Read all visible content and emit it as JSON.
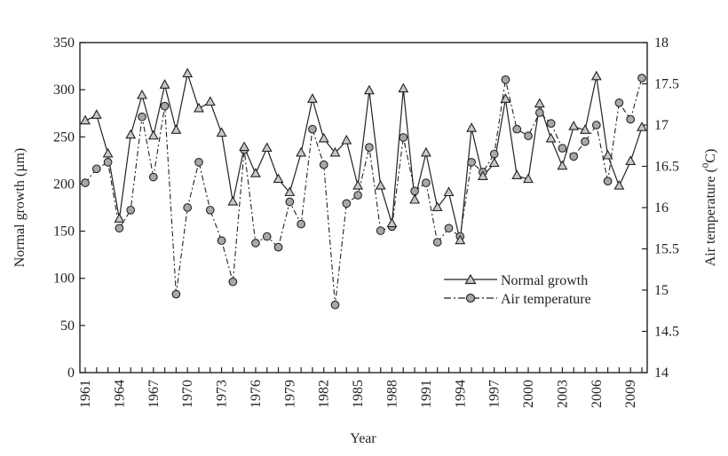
{
  "chart_data": {
    "type": "line",
    "title": "",
    "xlabel": "Year",
    "ylabel_left": "Normal growth (µm)",
    "ylabel_right_prefix": "Air temperature (",
    "ylabel_right_sup": "0",
    "ylabel_right_suffix": "C)",
    "x_tick_labels": [
      "1961",
      "1964",
      "1967",
      "1970",
      "1973",
      "1976",
      "1979",
      "1982",
      "1985",
      "1988",
      "1991",
      "1994",
      "1997",
      "2000",
      "2003",
      "2006",
      "2009"
    ],
    "y_left_ticks": [
      "0",
      "50",
      "100",
      "150",
      "200",
      "250",
      "300",
      "350"
    ],
    "y_right_ticks": [
      "14",
      "14.5",
      "15",
      "15.5",
      "16",
      "16.5",
      "17",
      "17.5",
      "18"
    ],
    "ylim_left": [
      0,
      350
    ],
    "ylim_right": [
      14,
      18
    ],
    "xlim": [
      1961,
      2010
    ],
    "grid": false,
    "legend_position": "right-center",
    "x": [
      1961,
      1962,
      1963,
      1964,
      1965,
      1966,
      1967,
      1968,
      1969,
      1970,
      1971,
      1972,
      1973,
      1974,
      1975,
      1976,
      1977,
      1978,
      1979,
      1980,
      1981,
      1982,
      1983,
      1984,
      1985,
      1986,
      1987,
      1988,
      1989,
      1990,
      1991,
      1992,
      1993,
      1994,
      1995,
      1996,
      1997,
      1998,
      1999,
      2000,
      2001,
      2002,
      2003,
      2004,
      2005,
      2006,
      2007,
      2008,
      2009,
      2010
    ],
    "series": [
      {
        "name": "Normal growth",
        "axis": "left",
        "marker": "triangle",
        "style": "solid",
        "values": [
          267,
          273,
          232,
          163,
          252,
          294,
          251,
          305,
          257,
          317,
          280,
          287,
          254,
          181,
          239,
          211,
          238,
          205,
          191,
          233,
          290,
          248,
          233,
          246,
          198,
          299,
          198,
          158,
          301,
          183,
          233,
          175,
          191,
          140,
          259,
          208,
          222,
          290,
          209,
          205,
          285,
          248,
          219,
          261,
          257,
          314,
          230,
          198,
          224,
          260
        ]
      },
      {
        "name": "Air temperature",
        "axis": "right",
        "marker": "circle",
        "style": "dashdot",
        "values": [
          16.3,
          16.47,
          16.55,
          15.75,
          15.97,
          17.1,
          16.37,
          17.23,
          14.95,
          16.0,
          16.55,
          15.97,
          15.6,
          15.1,
          16.7,
          15.57,
          15.65,
          15.52,
          16.07,
          15.8,
          16.95,
          16.52,
          14.82,
          16.05,
          16.15,
          16.73,
          15.72,
          15.77,
          16.85,
          16.2,
          16.3,
          15.58,
          15.75,
          15.65,
          16.55,
          16.43,
          16.65,
          17.55,
          16.95,
          16.87,
          17.15,
          17.02,
          16.72,
          16.62,
          16.8,
          17.0,
          16.32,
          17.27,
          17.07,
          17.57
        ]
      }
    ]
  }
}
